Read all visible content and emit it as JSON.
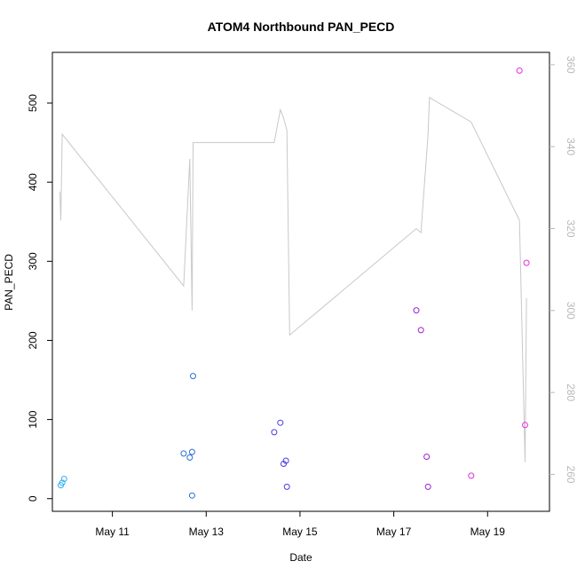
{
  "chart_data": {
    "type": "scatter",
    "title": "ATOM4 Northbound PAN_PECD",
    "xlabel": "Date",
    "ylabel": "PAN_PECD",
    "x_ticks": [
      "May 11",
      "May 13",
      "May 15",
      "May 17",
      "May 19"
    ],
    "x_tick_days": [
      11,
      13,
      15,
      17,
      19
    ],
    "xlim": [
      9.72,
      20.32
    ],
    "ylim": [
      -16,
      564
    ],
    "y_ticks": [
      0,
      100,
      200,
      300,
      400,
      500
    ],
    "y2lim": [
      251,
      363
    ],
    "y2_ticks": [
      260,
      280,
      300,
      320,
      340,
      360
    ],
    "grid": false,
    "points": [
      {
        "x": 9.9,
        "y": 17,
        "color": "#34aee8"
      },
      {
        "x": 9.93,
        "y": 20,
        "color": "#34aee8"
      },
      {
        "x": 9.97,
        "y": 25,
        "color": "#34aee8"
      },
      {
        "x": 12.52,
        "y": 57,
        "color": "#2a6bd8"
      },
      {
        "x": 12.65,
        "y": 52,
        "color": "#2a6bd8"
      },
      {
        "x": 12.7,
        "y": 59,
        "color": "#2a6bd8"
      },
      {
        "x": 12.72,
        "y": 155,
        "color": "#2a6bd8"
      },
      {
        "x": 12.7,
        "y": 4,
        "color": "#2a6bd8"
      },
      {
        "x": 14.45,
        "y": 84,
        "color": "#4a3ae0"
      },
      {
        "x": 14.58,
        "y": 96,
        "color": "#4a3ae0"
      },
      {
        "x": 14.65,
        "y": 44,
        "color": "#4a3ae0"
      },
      {
        "x": 14.7,
        "y": 48,
        "color": "#4a3ae0"
      },
      {
        "x": 14.72,
        "y": 15,
        "color": "#4a3ae0"
      },
      {
        "x": 17.48,
        "y": 238,
        "color": "#9a22d0"
      },
      {
        "x": 17.58,
        "y": 213,
        "color": "#9a22d0"
      },
      {
        "x": 17.7,
        "y": 53,
        "color": "#9a22d0"
      },
      {
        "x": 17.73,
        "y": 15,
        "color": "#9a22d0"
      },
      {
        "x": 18.65,
        "y": 29,
        "color": "#d830d8"
      },
      {
        "x": 19.68,
        "y": 541,
        "color": "#e82ce0"
      },
      {
        "x": 19.8,
        "y": 93,
        "color": "#e82ce0"
      },
      {
        "x": 19.83,
        "y": 298,
        "color": "#e82ce0"
      }
    ],
    "line_series": {
      "axis": "right",
      "color": "#c8c8c8",
      "x": [
        9.88,
        9.9,
        9.93,
        12.52,
        12.65,
        12.7,
        12.72,
        12.75,
        14.45,
        14.58,
        14.65,
        14.72,
        14.78,
        17.48,
        17.58,
        17.73,
        17.76,
        18.65,
        19.68,
        19.8,
        19.83
      ],
      "y": [
        329,
        322,
        343,
        306,
        337,
        300,
        341,
        341,
        341,
        349,
        347,
        344,
        294,
        320,
        319,
        343,
        352,
        346,
        322,
        263,
        303
      ]
    }
  }
}
